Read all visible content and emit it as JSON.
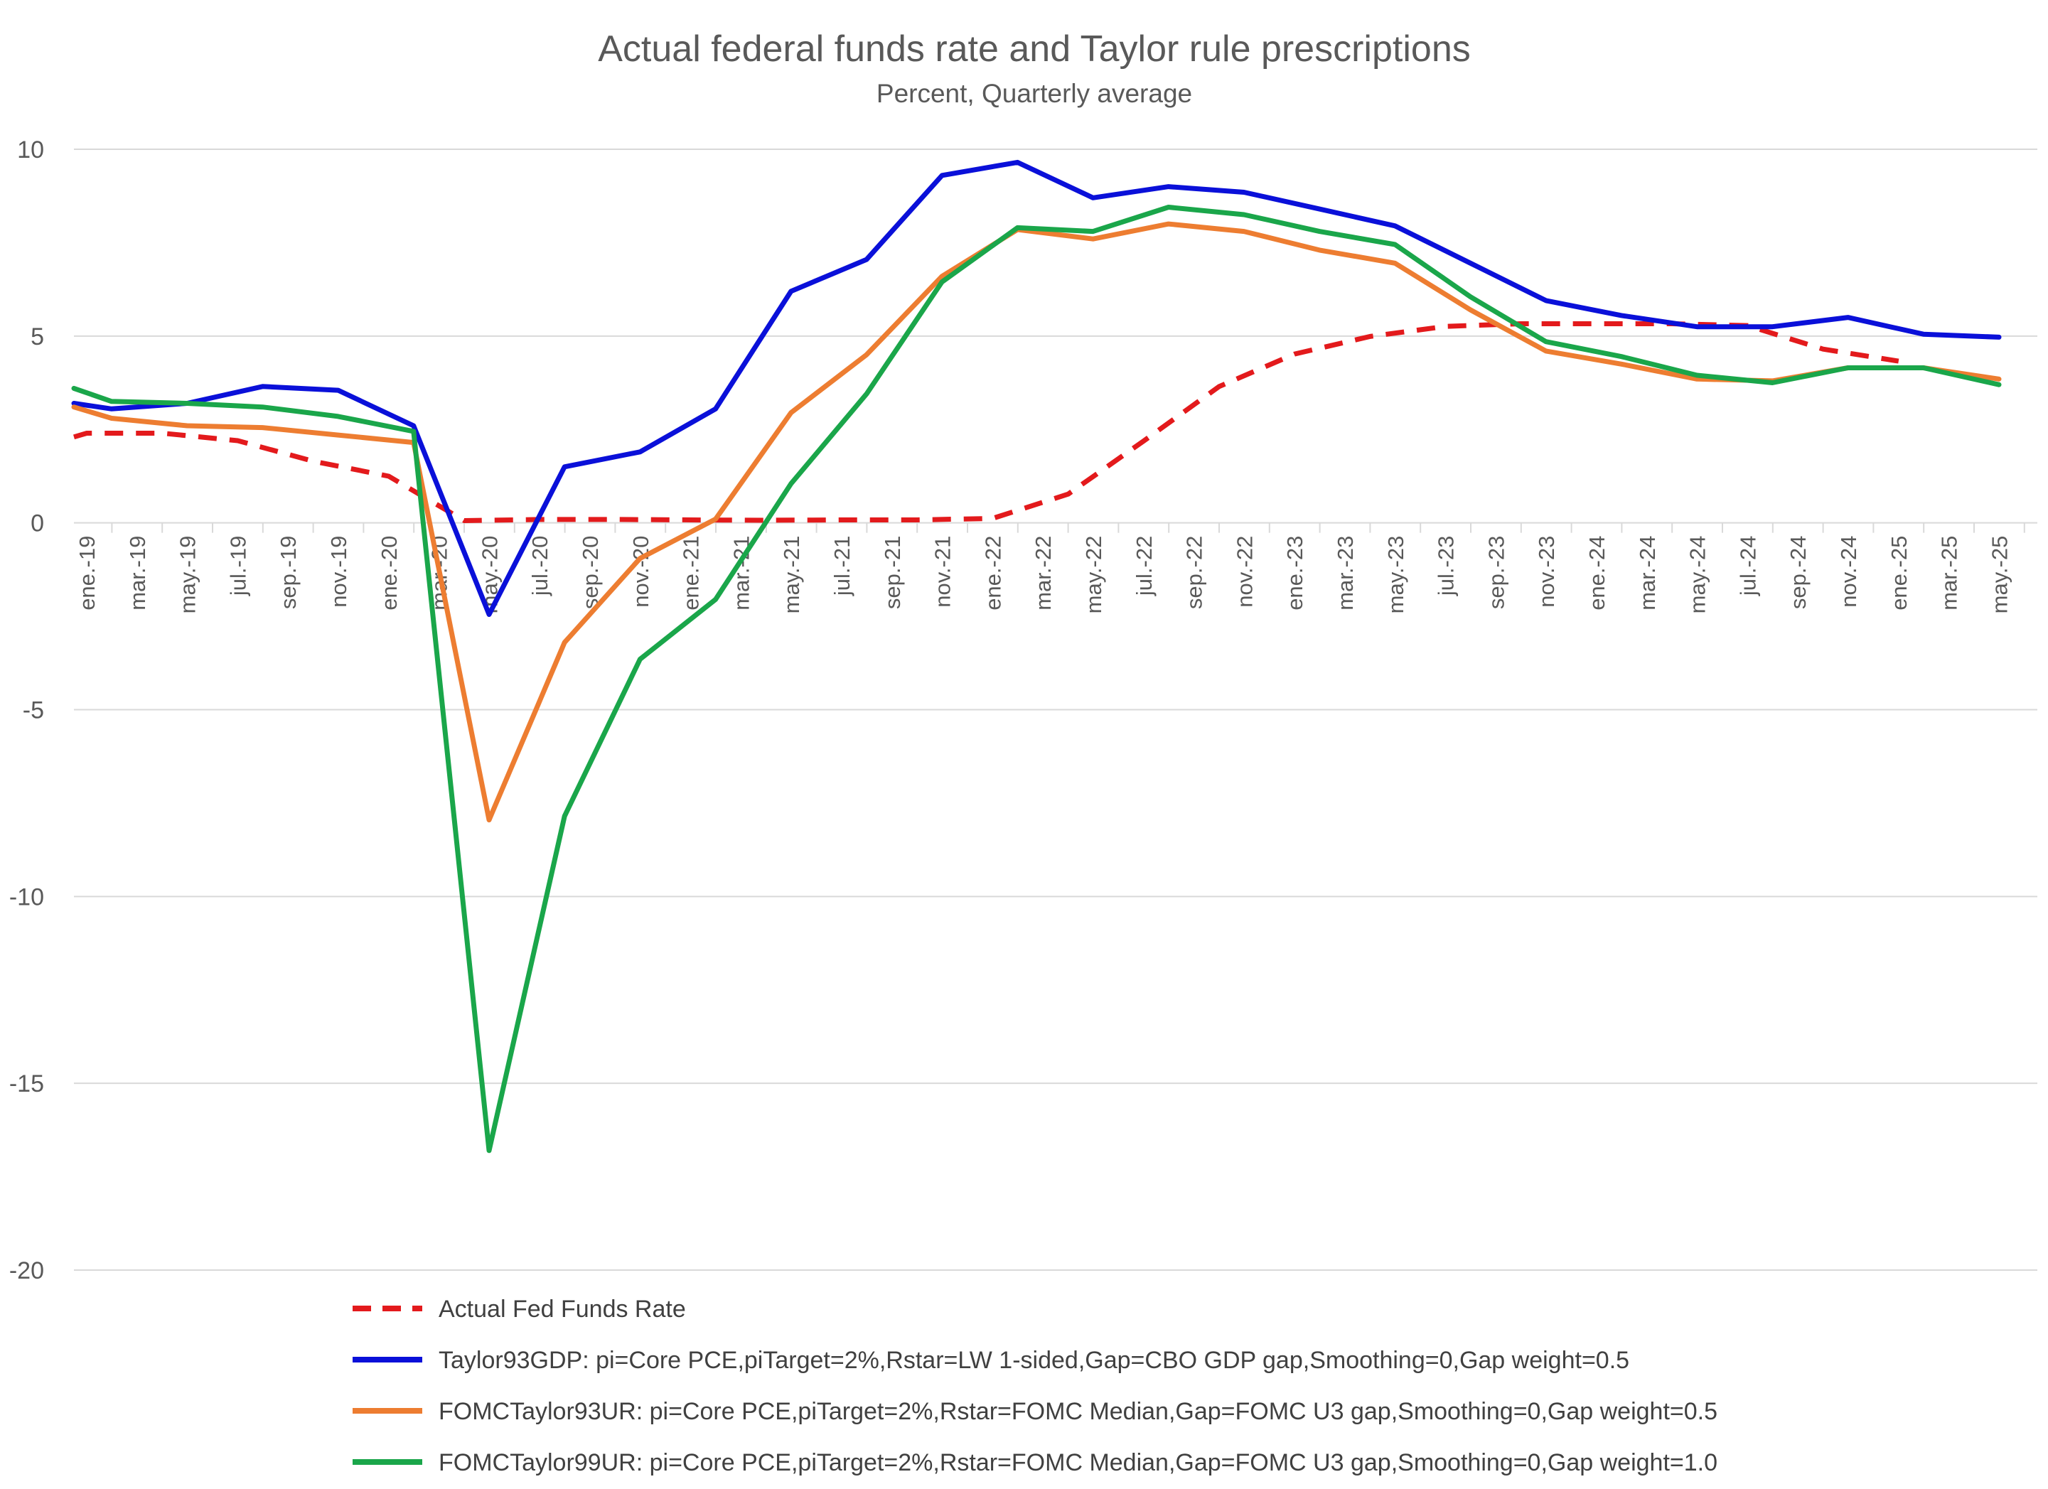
{
  "chart_data": {
    "type": "line",
    "title": "Actual federal funds rate and Taylor rule prescriptions",
    "subtitle": "Percent, Quarterly average",
    "xlabel": "",
    "ylabel": "",
    "ylim": [
      -20,
      10
    ],
    "yticks": [
      10,
      5,
      0,
      -5,
      -10,
      -15,
      -20
    ],
    "grid": true,
    "legend_position": "bottom",
    "x_tick_labels": [
      "ene.-19",
      "mar.-19",
      "may.-19",
      "jul.-19",
      "sep.-19",
      "nov.-19",
      "ene.-20",
      "mar.-20",
      "may.-20",
      "jul.-20",
      "sep.-20",
      "nov.-20",
      "ene.-21",
      "mar.-21",
      "may.-21",
      "jul.-21",
      "sep.-21",
      "nov.-21",
      "ene.-22",
      "mar.-22",
      "may.-22",
      "jul.-22",
      "sep.-22",
      "nov.-22",
      "ene.-23",
      "mar.-23",
      "may.-23",
      "jul.-23",
      "sep.-23",
      "nov.-23",
      "ene.-24",
      "mar.-24",
      "may.-24",
      "jul.-24",
      "sep.-24",
      "nov.-24",
      "ene.-25",
      "mar.-25",
      "may.-25"
    ],
    "x": [
      "2019-01",
      "2019-04",
      "2019-07",
      "2019-10",
      "2020-01",
      "2020-04",
      "2020-07",
      "2020-10",
      "2021-01",
      "2021-04",
      "2021-07",
      "2021-10",
      "2022-01",
      "2022-04",
      "2022-07",
      "2022-10",
      "2023-01",
      "2023-04",
      "2023-07",
      "2023-10",
      "2024-01",
      "2024-04",
      "2024-07",
      "2024-10",
      "2025-01",
      "2025-04"
    ],
    "series": [
      {
        "name": "Actual Fed Funds Rate",
        "color": "#e31a1c",
        "dash": "dashed",
        "values": [
          2.4,
          2.4,
          2.2,
          1.65,
          1.25,
          0.06,
          0.09,
          0.09,
          0.08,
          0.07,
          0.08,
          0.08,
          0.12,
          0.77,
          2.19,
          3.65,
          4.52,
          4.99,
          5.26,
          5.33,
          5.33,
          5.33,
          5.28,
          4.65,
          4.33,
          null
        ],
        "first_x": 0
      },
      {
        "name": "Taylor93GDP:  pi=Core PCE,piTarget=2%,Rstar=LW 1-sided,Gap=CBO GDP gap,Smoothing=0,Gap weight=0.5",
        "color": "#0a10d9",
        "dash": "solid",
        "values": [
          3.05,
          3.2,
          3.65,
          3.55,
          2.6,
          -2.45,
          1.5,
          1.9,
          3.05,
          6.2,
          7.05,
          9.3,
          9.65,
          8.7,
          9.0,
          8.85,
          8.4,
          7.95,
          6.95,
          5.95,
          5.55,
          5.25,
          5.25,
          5.5,
          5.05,
          4.97
        ],
        "first_x": 0.33
      },
      {
        "name": "FOMCTaylor93UR:  pi=Core PCE,piTarget=2%,Rstar=FOMC Median,Gap=FOMC U3 gap,Smoothing=0,Gap weight=0.5",
        "color": "#ed7d31",
        "dash": "solid",
        "values": [
          2.8,
          2.6,
          2.55,
          2.35,
          2.15,
          -7.95,
          -3.2,
          -0.95,
          0.1,
          2.95,
          4.5,
          6.6,
          7.85,
          7.6,
          8.0,
          7.8,
          7.3,
          6.95,
          5.7,
          4.6,
          4.25,
          3.85,
          3.8,
          4.15,
          4.15,
          3.85
        ],
        "first_x": 0.33
      },
      {
        "name": "FOMCTaylor99UR:  pi=Core PCE,piTarget=2%,Rstar=FOMC Median,Gap=FOMC U3 gap,Smoothing=0,Gap weight=1.0",
        "color": "#1aa64a",
        "dash": "solid",
        "values": [
          3.25,
          3.2,
          3.1,
          2.85,
          2.45,
          -16.8,
          -7.85,
          -3.65,
          -2.05,
          1.05,
          3.45,
          6.45,
          7.9,
          7.8,
          8.45,
          8.25,
          7.8,
          7.45,
          6.05,
          4.85,
          4.45,
          3.95,
          3.75,
          4.15,
          4.15,
          3.7
        ],
        "first_x": 0.33
      }
    ],
    "start_points": {
      "Actual Fed Funds Rate": 2.3,
      "Taylor93GDP:  pi=Core PCE,piTarget=2%,Rstar=LW 1-sided,Gap=CBO GDP gap,Smoothing=0,Gap weight=0.5": 3.2,
      "FOMCTaylor93UR:  pi=Core PCE,piTarget=2%,Rstar=FOMC Median,Gap=FOMC U3 gap,Smoothing=0,Gap weight=0.5": 3.1,
      "FOMCTaylor99UR:  pi=Core PCE,piTarget=2%,Rstar=FOMC Median,Gap=FOMC U3 gap,Smoothing=0,Gap weight=1.0": 3.6
    }
  }
}
